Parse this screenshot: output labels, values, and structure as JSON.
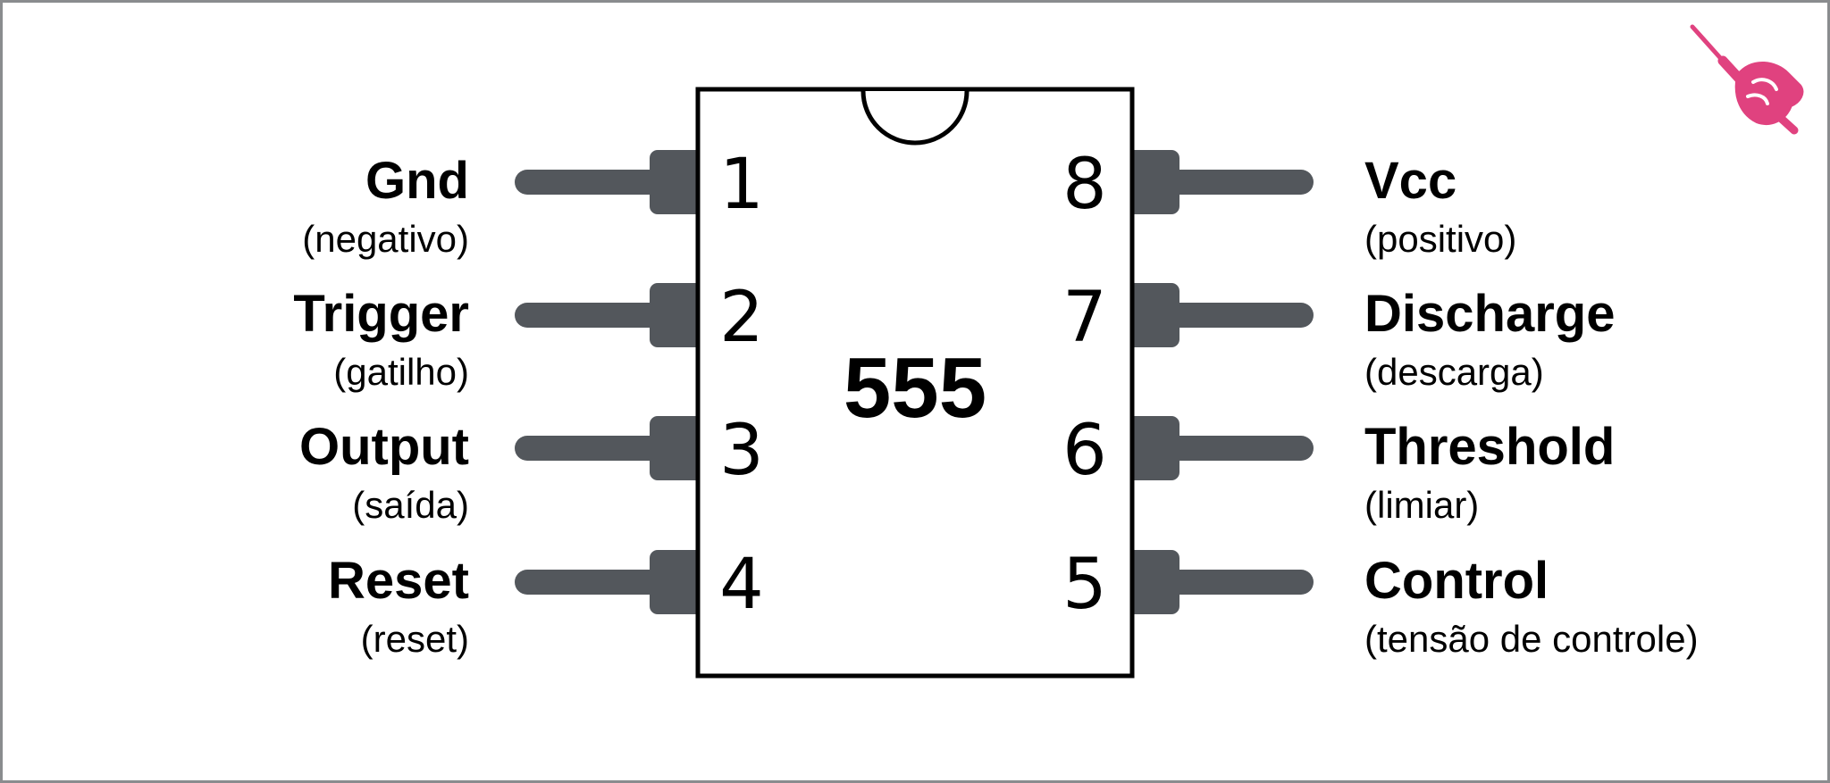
{
  "chip": {
    "name": "555"
  },
  "pins_left": [
    {
      "number": "1",
      "name": "Gnd",
      "desc": "(negativo)"
    },
    {
      "number": "2",
      "name": "Trigger",
      "desc": "(gatilho)"
    },
    {
      "number": "3",
      "name": "Output",
      "desc": "(saída)"
    },
    {
      "number": "4",
      "name": "Reset",
      "desc": "(reset)"
    }
  ],
  "pins_right": [
    {
      "number": "8",
      "name": "Vcc",
      "desc": "(positivo)"
    },
    {
      "number": "7",
      "name": "Discharge",
      "desc": "(descarga)"
    },
    {
      "number": "6",
      "name": "Threshold",
      "desc": "(limiar)"
    },
    {
      "number": "5",
      "name": "Control",
      "desc": "(tensão de controle)"
    }
  ],
  "colors": {
    "pin": "#53575c",
    "border": "#8a8c8e",
    "chip_outline": "#000000",
    "logo": "#e0427f"
  },
  "logo": {
    "icon": "screwdriver-hand-logo-icon"
  }
}
